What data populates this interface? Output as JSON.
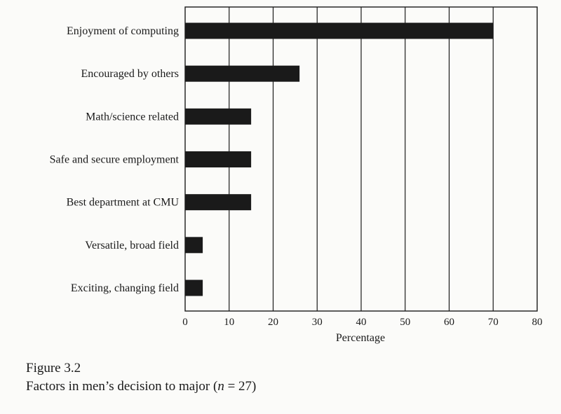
{
  "figure": {
    "number": "Figure 3.2",
    "title_prefix": "Factors in men’s decision to major (",
    "title_n_symbol": "n",
    "title_suffix": " = 27)"
  },
  "chart_data": {
    "type": "bar",
    "orientation": "horizontal",
    "categories": [
      "Enjoyment of computing",
      "Encouraged by others",
      "Math/science related",
      "Safe and secure employment",
      "Best department at CMU",
      "Versatile, broad field",
      "Exciting, changing field"
    ],
    "values": [
      70,
      26,
      15,
      15,
      15,
      4,
      4
    ],
    "xlabel": "Percentage",
    "xlim": [
      0,
      80
    ],
    "xticks": [
      0,
      10,
      20,
      30,
      40,
      50,
      60,
      70,
      80
    ],
    "grid": "vertical gridlines at each tick",
    "bar_color": "#1a1a1a"
  }
}
